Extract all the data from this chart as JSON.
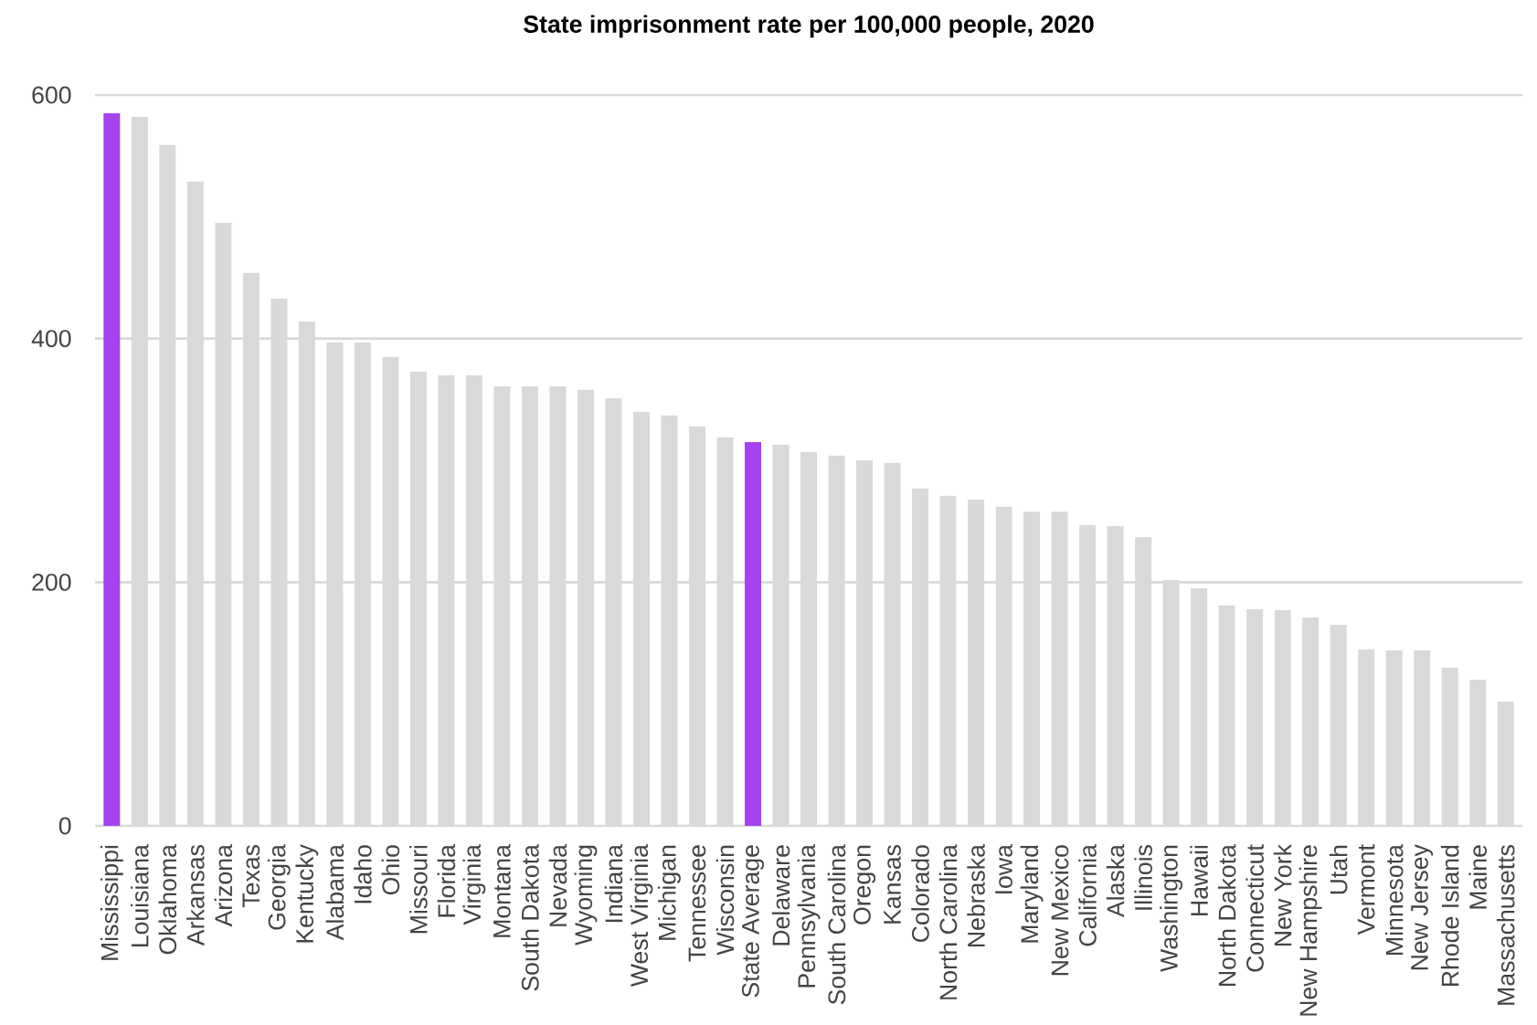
{
  "chart_data": {
    "type": "bar",
    "title": "State imprisonment rate per 100,000 people, 2020",
    "categories": [
      "Mississippi",
      "Louisiana",
      "Oklahoma",
      "Arkansas",
      "Arizona",
      "Texas",
      "Georgia",
      "Kentucky",
      "Alabama",
      "Idaho",
      "Ohio",
      "Missouri",
      "Florida",
      "Virginia",
      "Montana",
      "South Dakota",
      "Nevada",
      "Wyoming",
      "Indiana",
      "West Virginia",
      "Michigan",
      "Tennessee",
      "Wisconsin",
      "State Average",
      "Delaware",
      "Pennsylvania",
      "South Carolina",
      "Oregon",
      "Kansas",
      "Colorado",
      "North Carolina",
      "Nebraska",
      "Iowa",
      "Maryland",
      "New Mexico",
      "California",
      "Alaska",
      "Illinois",
      "Washington",
      "Hawaii",
      "North Dakota",
      "Connecticut",
      "New York",
      "New Hampshire",
      "Utah",
      "Vermont",
      "Minnesota",
      "New Jersey",
      "Rhode Island",
      "Maine",
      "Massachusetts"
    ],
    "values": [
      585,
      582,
      559,
      529,
      495,
      454,
      433,
      414,
      397,
      397,
      385,
      373,
      370,
      370,
      361,
      361,
      361,
      358,
      351,
      340,
      337,
      328,
      319,
      315,
      313,
      307,
      304,
      300,
      298,
      277,
      271,
      268,
      262,
      258,
      258,
      247,
      246,
      237,
      202,
      195,
      181,
      178,
      177,
      171,
      165,
      145,
      144,
      144,
      130,
      120,
      102
    ],
    "colors": [
      "#a443ef",
      "#d9d9d9",
      "#d9d9d9",
      "#d9d9d9",
      "#d9d9d9",
      "#d9d9d9",
      "#d9d9d9",
      "#d9d9d9",
      "#d9d9d9",
      "#d9d9d9",
      "#d9d9d9",
      "#d9d9d9",
      "#d9d9d9",
      "#d9d9d9",
      "#d9d9d9",
      "#d9d9d9",
      "#d9d9d9",
      "#d9d9d9",
      "#d9d9d9",
      "#d9d9d9",
      "#d9d9d9",
      "#d9d9d9",
      "#d9d9d9",
      "#a443ef",
      "#d9d9d9",
      "#d9d9d9",
      "#d9d9d9",
      "#d9d9d9",
      "#d9d9d9",
      "#d9d9d9",
      "#d9d9d9",
      "#d9d9d9",
      "#d9d9d9",
      "#d9d9d9",
      "#d9d9d9",
      "#d9d9d9",
      "#d9d9d9",
      "#d9d9d9",
      "#d9d9d9",
      "#d9d9d9",
      "#d9d9d9",
      "#d9d9d9",
      "#d9d9d9",
      "#d9d9d9",
      "#d9d9d9",
      "#d9d9d9",
      "#d9d9d9",
      "#d9d9d9",
      "#d9d9d9",
      "#d9d9d9",
      "#d9d9d9"
    ],
    "ylim": [
      0,
      600
    ],
    "yticks": [
      0,
      200,
      400,
      600
    ],
    "grid": "y"
  }
}
